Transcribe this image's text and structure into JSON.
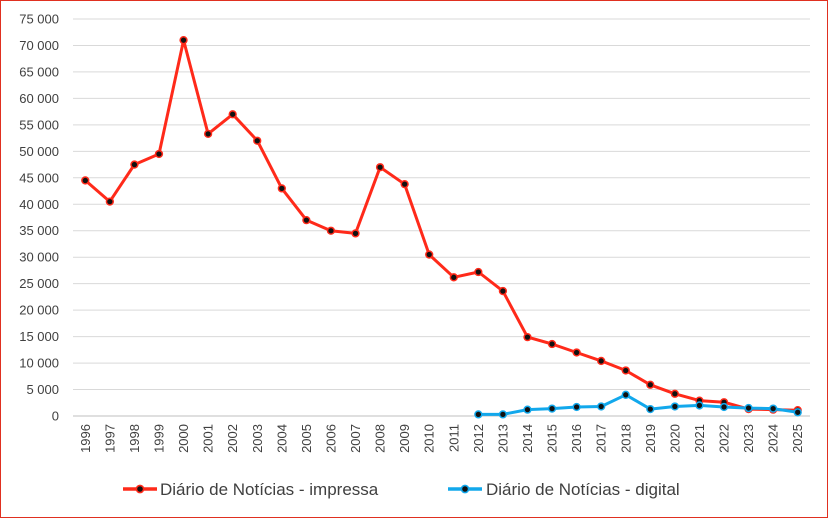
{
  "chart_data": {
    "type": "line",
    "title": "",
    "xlabel": "",
    "ylabel": "",
    "ylim": [
      0,
      75000
    ],
    "y_ticks": [
      0,
      5000,
      10000,
      15000,
      20000,
      25000,
      30000,
      35000,
      40000,
      45000,
      50000,
      55000,
      60000,
      65000,
      70000,
      75000
    ],
    "y_tick_labels": [
      "0",
      "5 000",
      "10 000",
      "15 000",
      "20 000",
      "25 000",
      "30 000",
      "35 000",
      "40 000",
      "45 000",
      "50 000",
      "55 000",
      "60 000",
      "65 000",
      "70 000",
      "75 000"
    ],
    "grid": "horizontal",
    "legend_position": "bottom",
    "x": [
      "1996",
      "1997",
      "1998",
      "1999",
      "2000",
      "2001",
      "2002",
      "2003",
      "2004",
      "2005",
      "2006",
      "2007",
      "2008",
      "2009",
      "2010",
      "2011",
      "2012",
      "2013",
      "2014",
      "2015",
      "2016",
      "2017",
      "2018",
      "2019",
      "2020",
      "2021",
      "2022",
      "2023",
      "2024",
      "2025"
    ],
    "series": [
      {
        "name": "Diário de Notícias - impressa",
        "color": "#ff2a1a",
        "values": [
          44500,
          40500,
          47500,
          49500,
          71000,
          53300,
          57000,
          52000,
          43000,
          37000,
          35000,
          34500,
          47000,
          43800,
          30500,
          26200,
          27200,
          23600,
          14900,
          13600,
          12000,
          10400,
          8600,
          5900,
          4200,
          2900,
          2600,
          1300,
          1200,
          1100
        ]
      },
      {
        "name": "Diário de Notícias - digital",
        "color": "#12a8ec",
        "values": [
          null,
          null,
          null,
          null,
          null,
          null,
          null,
          null,
          null,
          null,
          null,
          null,
          null,
          null,
          null,
          null,
          300,
          300,
          1200,
          1400,
          1700,
          1800,
          4000,
          1300,
          1800,
          2000,
          1700,
          1500,
          1400,
          700
        ]
      }
    ]
  }
}
